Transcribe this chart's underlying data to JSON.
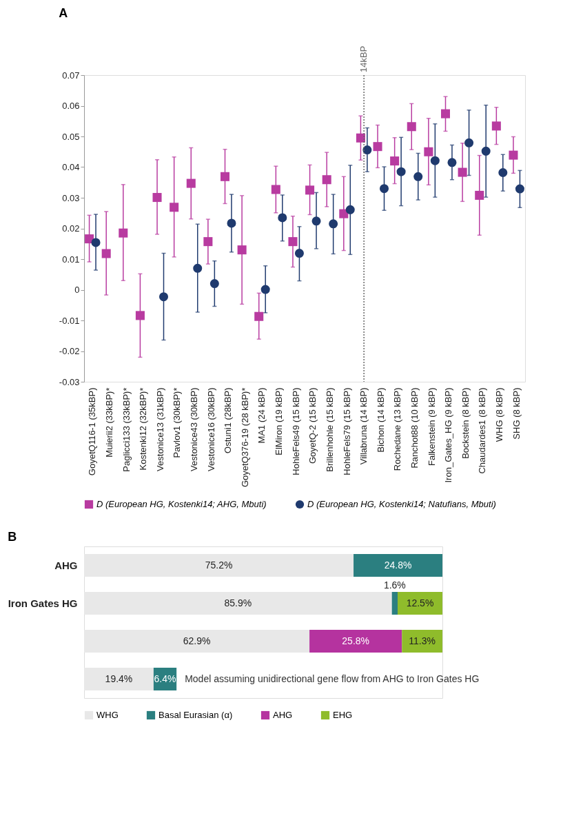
{
  "chart_data": [
    {
      "type": "scatter",
      "title": "A",
      "categories": [
        "GoyetQ116-1 (35kBP)",
        "Muierii2 (33kBP)*",
        "Paglicci133 (33kBP)*",
        "Kostenki12 (32kBP)*",
        "Vestonice13 (31kBP)",
        "Pavlov1 (30kBP)*",
        "Vestonice43 (30kBP)",
        "Vestonice16 (30kBP)",
        "Ostuni1 (28kBP)",
        "GoyetQ376-19 (28 kBP)*",
        "MA1 (24 kBP)",
        "ElMiron (19 kBP)",
        "HohleFels49 (15 kBP)",
        "GoyetQ-2 (15 kBP)",
        "Brillenhohle (15 kBP)",
        "HohleFels79 (15 kBP)",
        "Villabruna (14 kBP)",
        "Bichon (14 kBP)",
        "Rochedane (13 kBP)",
        "Ranchot88 (10 kBP)",
        "Falkenstein (9 kBP)",
        "Iron_Gates_HG (9 kBP)",
        "Bockstein (8 kBP)",
        "Chaudardes1 (8 kBP)",
        "WHG (8 kBP)",
        "SHG (8 kBP)"
      ],
      "series": [
        {
          "name": "D (European HG, Kostenki14; AHG, Mbuti)",
          "color": "#b83ba0",
          "marker": "square",
          "values": [
            0.0166,
            0.0118,
            0.0185,
            -0.0084,
            0.0301,
            0.0269,
            0.0347,
            0.0157,
            0.0369,
            0.013,
            -0.0087,
            0.0327,
            0.0157,
            0.0325,
            0.0359,
            0.0248,
            0.0495,
            0.0467,
            0.042,
            0.0532,
            0.045,
            0.0574,
            0.0383,
            0.0308,
            0.0534,
            0.0439
          ],
          "errors": [
            [
              0.0091,
              0.0243
            ],
            [
              -0.0017,
              0.0255
            ],
            [
              0.003,
              0.0343
            ],
            [
              -0.022,
              0.0052
            ],
            [
              0.0181,
              0.0424
            ],
            [
              0.0107,
              0.0433
            ],
            [
              0.0231,
              0.0463
            ],
            [
              0.0084,
              0.023
            ],
            [
              0.0281,
              0.0458
            ],
            [
              -0.0047,
              0.0307
            ],
            [
              -0.0161,
              -0.0011
            ],
            [
              0.0251,
              0.0403
            ],
            [
              0.0074,
              0.024
            ],
            [
              0.0245,
              0.0407
            ],
            [
              0.0271,
              0.0448
            ],
            [
              0.0128,
              0.0369
            ],
            [
              0.0423,
              0.0567
            ],
            [
              0.0398,
              0.0537
            ],
            [
              0.0346,
              0.0496
            ],
            [
              0.0457,
              0.0607
            ],
            [
              0.0342,
              0.0559
            ],
            [
              0.0517,
              0.063
            ],
            [
              0.0288,
              0.0478
            ],
            [
              0.0178,
              0.0438
            ],
            [
              0.0474,
              0.0595
            ],
            [
              0.038,
              0.0499
            ]
          ]
        },
        {
          "name": "D (European HG, Kostenki14; Natufians, Mbuti)",
          "color": "#1f3a6e",
          "marker": "circle",
          "values": [
            0.0154,
            null,
            null,
            null,
            -0.0023,
            null,
            0.007,
            0.002,
            0.0217,
            null,
            0.0001,
            0.0235,
            0.0119,
            0.0224,
            0.0215,
            0.0261,
            0.0456,
            0.033,
            0.0385,
            0.0369,
            0.0421,
            0.0415,
            0.0479,
            0.0452,
            0.0382,
            0.0329
          ],
          "errors": [
            [
              0.0064,
              0.0246
            ],
            null,
            null,
            null,
            [
              -0.0164,
              0.0119
            ],
            null,
            [
              -0.0073,
              0.0214
            ],
            [
              -0.0054,
              0.0094
            ],
            [
              0.0123,
              0.0311
            ],
            null,
            [
              -0.0075,
              0.0078
            ],
            [
              0.0159,
              0.0309
            ],
            [
              0.0029,
              0.0206
            ],
            [
              0.0134,
              0.0317
            ],
            [
              0.0117,
              0.0311
            ],
            [
              0.0115,
              0.0406
            ],
            [
              0.0385,
              0.0528
            ],
            [
              0.0259,
              0.0401
            ],
            [
              0.0274,
              0.0497
            ],
            [
              0.0293,
              0.0445
            ],
            [
              0.0302,
              0.0541
            ],
            [
              0.0359,
              0.0472
            ],
            [
              0.0373,
              0.0586
            ],
            [
              0.0302,
              0.0602
            ],
            [
              0.0322,
              0.0441
            ],
            [
              0.0268,
              0.0389
            ]
          ]
        }
      ],
      "ylim": [
        -0.03,
        0.07
      ],
      "yticks": [
        -0.03,
        -0.02,
        -0.01,
        0,
        0.01,
        0.02,
        0.03,
        0.04,
        0.05,
        0.06,
        0.07
      ],
      "ref_lines": [
        {
          "axis": "x",
          "value": "Villabruna (14 kBP)",
          "label": "14kBP",
          "color": "#666666",
          "line_style": "dotted"
        }
      ],
      "grid": false,
      "legend": "bottom"
    },
    {
      "type": "bar",
      "title": "B",
      "orientation": "horizontal",
      "stacked": true,
      "tick_labels": "y",
      "legend": "bottom",
      "categories": [
        "AHG",
        "Iron Gates HG",
        null,
        null
      ],
      "series": [
        {
          "name": "WHG",
          "color": "#e8e8e8",
          "values": [
            75.2,
            85.9,
            62.9,
            19.4
          ],
          "value_labels": [
            "75.2%",
            "85.9%",
            "62.9%",
            "19.4%"
          ]
        },
        {
          "name": "Basal Eurasian (α)",
          "color": "#2b7f80",
          "values": [
            24.8,
            1.6,
            null,
            6.4
          ],
          "value_labels": [
            "24.8%",
            "1.6%",
            null,
            "6.4%"
          ]
        },
        {
          "name": "AHG",
          "color": "#b5339f",
          "values": [
            null,
            null,
            25.8,
            null
          ],
          "value_labels": [
            null,
            null,
            "25.8%",
            null
          ]
        },
        {
          "name": "EHG",
          "color": "#8fbc2b",
          "values": [
            null,
            12.5,
            11.3,
            null
          ],
          "value_labels": [
            null,
            "12.5%",
            "11.3%",
            null
          ]
        }
      ],
      "annotations": [
        "Model assuming unidirectional gene flow from AHG to Iron Gates HG"
      ]
    }
  ]
}
